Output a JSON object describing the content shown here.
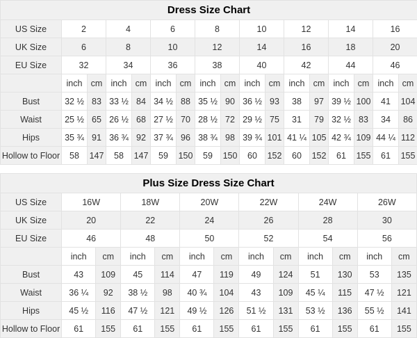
{
  "styles": {
    "header_bg": "#f0f0f0",
    "border_color": "#e2e2e2",
    "text_color": "#333333",
    "title_color": "#000000"
  },
  "tables": [
    {
      "title": "Dress Size Chart",
      "size_rows": [
        {
          "label": "US Size",
          "values": [
            "2",
            "4",
            "6",
            "8",
            "10",
            "12",
            "14",
            "16"
          ]
        },
        {
          "label": "UK Size",
          "values": [
            "6",
            "8",
            "10",
            "12",
            "14",
            "16",
            "18",
            "20"
          ]
        },
        {
          "label": "EU Size",
          "values": [
            "32",
            "34",
            "36",
            "38",
            "40",
            "42",
            "44",
            "46"
          ]
        }
      ],
      "unit_labels": [
        "inch",
        "cm"
      ],
      "measure_rows": [
        {
          "label": "Bust",
          "values": [
            [
              "32 ½",
              "83"
            ],
            [
              "33 ½",
              "84"
            ],
            [
              "34 ½",
              "88"
            ],
            [
              "35 ½",
              "90"
            ],
            [
              "36 ½",
              "93"
            ],
            [
              "38",
              "97"
            ],
            [
              "39 ½",
              "100"
            ],
            [
              "41",
              "104"
            ]
          ]
        },
        {
          "label": "Waist",
          "values": [
            [
              "25 ½",
              "65"
            ],
            [
              "26 ½",
              "68"
            ],
            [
              "27 ½",
              "70"
            ],
            [
              "28 ½",
              "72"
            ],
            [
              "29 ½",
              "75"
            ],
            [
              "31",
              "79"
            ],
            [
              "32 ½",
              "83"
            ],
            [
              "34",
              "86"
            ]
          ]
        },
        {
          "label": "Hips",
          "values": [
            [
              "35 ¾",
              "91"
            ],
            [
              "36 ¾",
              "92"
            ],
            [
              "37 ¾",
              "96"
            ],
            [
              "38 ¾",
              "98"
            ],
            [
              "39 ¾",
              "101"
            ],
            [
              "41 ¼",
              "105"
            ],
            [
              "42 ¾",
              "109"
            ],
            [
              "44 ¼",
              "112"
            ]
          ]
        },
        {
          "label": "Hollow to Floor",
          "values": [
            [
              "58",
              "147"
            ],
            [
              "58",
              "147"
            ],
            [
              "59",
              "150"
            ],
            [
              "59",
              "150"
            ],
            [
              "60",
              "152"
            ],
            [
              "60",
              "152"
            ],
            [
              "61",
              "155"
            ],
            [
              "61",
              "155"
            ]
          ]
        }
      ]
    },
    {
      "title": "Plus Size Dress Size Chart",
      "size_rows": [
        {
          "label": "US Size",
          "values": [
            "16W",
            "18W",
            "20W",
            "22W",
            "24W",
            "26W"
          ]
        },
        {
          "label": "UK Size",
          "values": [
            "20",
            "22",
            "24",
            "26",
            "28",
            "30"
          ]
        },
        {
          "label": "EU Size",
          "values": [
            "46",
            "48",
            "50",
            "52",
            "54",
            "56"
          ]
        }
      ],
      "unit_labels": [
        "inch",
        "cm"
      ],
      "measure_rows": [
        {
          "label": "Bust",
          "values": [
            [
              "43",
              "109"
            ],
            [
              "45",
              "114"
            ],
            [
              "47",
              "119"
            ],
            [
              "49",
              "124"
            ],
            [
              "51",
              "130"
            ],
            [
              "53",
              "135"
            ]
          ]
        },
        {
          "label": "Waist",
          "values": [
            [
              "36 ¼",
              "92"
            ],
            [
              "38 ½",
              "98"
            ],
            [
              "40 ¾",
              "104"
            ],
            [
              "43",
              "109"
            ],
            [
              "45 ¼",
              "115"
            ],
            [
              "47 ½",
              "121"
            ]
          ]
        },
        {
          "label": "Hips",
          "values": [
            [
              "45 ½",
              "116"
            ],
            [
              "47 ½",
              "121"
            ],
            [
              "49 ½",
              "126"
            ],
            [
              "51 ½",
              "131"
            ],
            [
              "53 ½",
              "136"
            ],
            [
              "55 ½",
              "141"
            ]
          ]
        },
        {
          "label": "Hollow to Floor",
          "values": [
            [
              "61",
              "155"
            ],
            [
              "61",
              "155"
            ],
            [
              "61",
              "155"
            ],
            [
              "61",
              "155"
            ],
            [
              "61",
              "155"
            ],
            [
              "61",
              "155"
            ]
          ]
        }
      ]
    }
  ]
}
